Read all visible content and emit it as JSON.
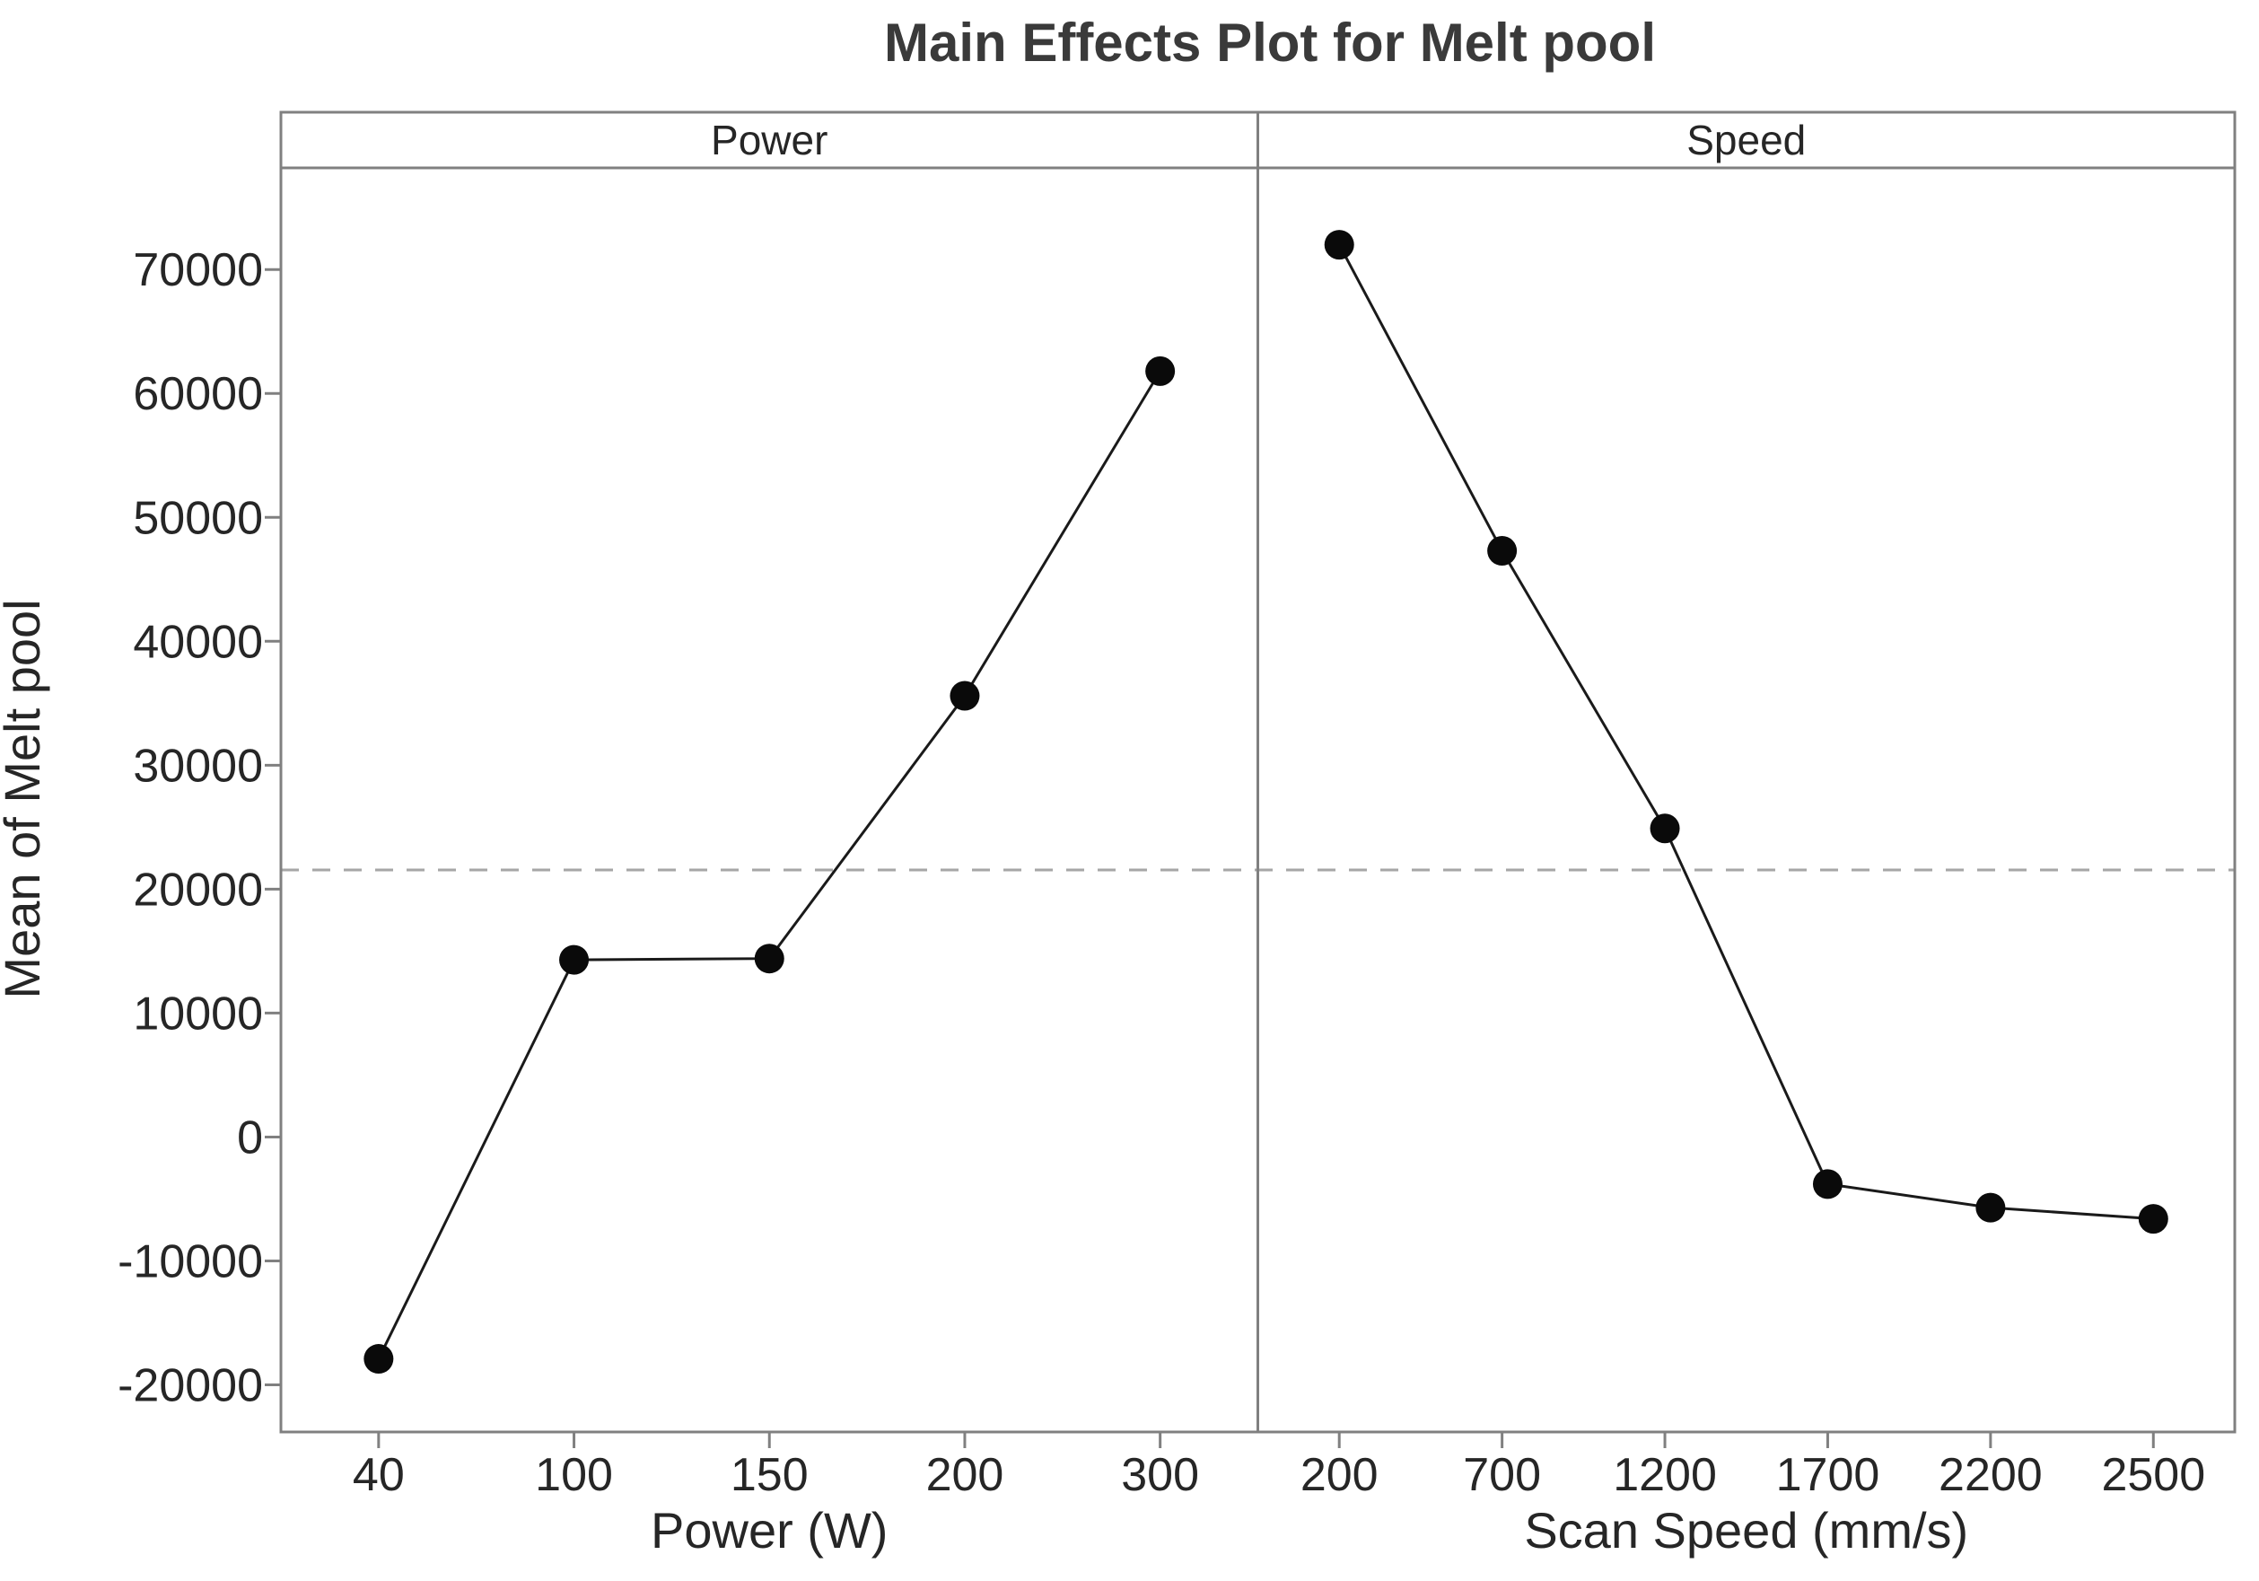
{
  "chart_data": {
    "type": "line",
    "title": "Main Effects Plot for Melt pool",
    "ylabel": "Mean of Melt pool",
    "grid": false,
    "legend": "none",
    "y_ticks": [
      -20000,
      -10000,
      0,
      10000,
      20000,
      30000,
      40000,
      50000,
      60000,
      70000
    ],
    "ylim": [
      -23800,
      78200
    ],
    "mean_line_value": 21550,
    "panels": [
      {
        "label": "Power",
        "xlabel": "Power (W)",
        "categories": [
          "40",
          "100",
          "150",
          "200",
          "300"
        ],
        "values": [
          -17900,
          14300,
          14400,
          35600,
          61800
        ]
      },
      {
        "label": "Speed",
        "xlabel": "Scan Speed (mm/s)",
        "categories": [
          "200",
          "700",
          "1200",
          "1700",
          "2200",
          "2500"
        ],
        "values": [
          72000,
          47300,
          24900,
          -3800,
          -5700,
          -6600
        ]
      }
    ],
    "colors": {
      "background": "#ffffff",
      "frame": "#808080",
      "tick_text": "#262626",
      "title_text": "#3a3a3a",
      "series_line": "#1a1a1a",
      "marker": "#0a0a0a",
      "mean_line": "#a6a6a6"
    }
  }
}
